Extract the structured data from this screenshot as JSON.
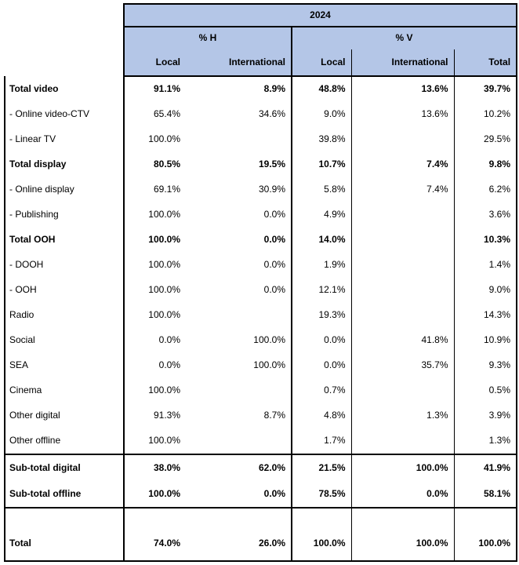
{
  "chart_data": {
    "type": "table",
    "title": "2024",
    "column_groups": [
      {
        "label": "% H",
        "span": 2
      },
      {
        "label": "% V",
        "span": 3
      }
    ],
    "columns": [
      "Local",
      "International",
      "Local",
      "International",
      "Total"
    ],
    "rows": [
      {
        "label": "Total video",
        "bold": true,
        "values": [
          "91.1%",
          "8.9%",
          "48.8%",
          "13.6%",
          "39.7%"
        ]
      },
      {
        "label": "- Online video-CTV",
        "bold": false,
        "values": [
          "65.4%",
          "34.6%",
          "9.0%",
          "13.6%",
          "10.2%"
        ]
      },
      {
        "label": "- Linear TV",
        "bold": false,
        "values": [
          "100.0%",
          "",
          "39.8%",
          "",
          "29.5%"
        ]
      },
      {
        "label": "Total display",
        "bold": true,
        "values": [
          "80.5%",
          "19.5%",
          "10.7%",
          "7.4%",
          "9.8%"
        ]
      },
      {
        "label": "- Online display",
        "bold": false,
        "values": [
          "69.1%",
          "30.9%",
          "5.8%",
          "7.4%",
          "6.2%"
        ]
      },
      {
        "label": "- Publishing",
        "bold": false,
        "values": [
          "100.0%",
          "0.0%",
          "4.9%",
          "",
          "3.6%"
        ]
      },
      {
        "label": "Total OOH",
        "bold": true,
        "values": [
          "100.0%",
          "0.0%",
          "14.0%",
          "",
          "10.3%"
        ]
      },
      {
        "label": "- DOOH",
        "bold": false,
        "values": [
          "100.0%",
          "0.0%",
          "1.9%",
          "",
          "1.4%"
        ]
      },
      {
        "label": "- OOH",
        "bold": false,
        "values": [
          "100.0%",
          "0.0%",
          "12.1%",
          "",
          "9.0%"
        ]
      },
      {
        "label": "Radio",
        "bold": false,
        "values": [
          "100.0%",
          "",
          "19.3%",
          "",
          "14.3%"
        ]
      },
      {
        "label": "Social",
        "bold": false,
        "values": [
          "0.0%",
          "100.0%",
          "0.0%",
          "41.8%",
          "10.9%"
        ]
      },
      {
        "label": "SEA",
        "bold": false,
        "values": [
          "0.0%",
          "100.0%",
          "0.0%",
          "35.7%",
          "9.3%"
        ]
      },
      {
        "label": "Cinema",
        "bold": false,
        "values": [
          "100.0%",
          "",
          "0.7%",
          "",
          "0.5%"
        ]
      },
      {
        "label": "Other digital",
        "bold": false,
        "values": [
          "91.3%",
          "8.7%",
          "4.8%",
          "1.3%",
          "3.9%"
        ]
      },
      {
        "label": "Other offline",
        "bold": false,
        "values": [
          "100.0%",
          "",
          "1.7%",
          "",
          "1.3%"
        ]
      }
    ],
    "subtotal_rows": [
      {
        "label": "Sub-total digital",
        "bold": true,
        "values": [
          "38.0%",
          "62.0%",
          "21.5%",
          "100.0%",
          "41.9%"
        ]
      },
      {
        "label": "Sub-total offline",
        "bold": true,
        "values": [
          "100.0%",
          "0.0%",
          "78.5%",
          "0.0%",
          "58.1%"
        ]
      }
    ],
    "total_row": {
      "label": "Total",
      "bold": true,
      "values": [
        "74.0%",
        "26.0%",
        "100.0%",
        "100.0%",
        "100.0%"
      ]
    },
    "layout_hints": {
      "grid": "partial-borders",
      "header_rows": 3,
      "value_alignment": "right"
    }
  },
  "colors": {
    "header_fill": "#B4C6E7",
    "border": "#000000",
    "text": "#000000",
    "background": "#FFFFFF"
  }
}
